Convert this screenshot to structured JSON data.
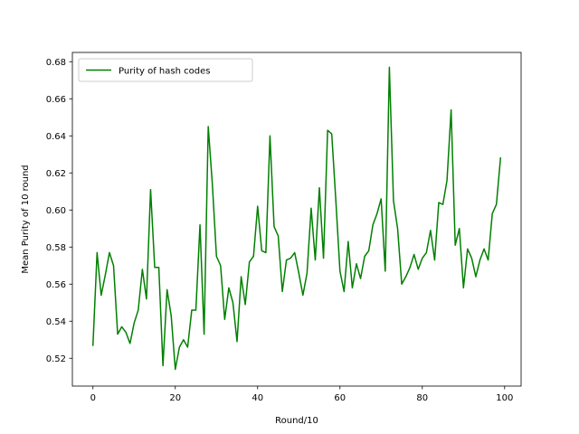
{
  "chart_data": {
    "type": "line",
    "title": "",
    "xlabel": "Round/10",
    "ylabel": "Mean Purity of 10 round",
    "xlim": [
      -5,
      104
    ],
    "ylim": [
      0.505,
      0.685
    ],
    "xticks": [
      0,
      20,
      40,
      60,
      80,
      100
    ],
    "yticks": [
      0.52,
      0.54,
      0.56,
      0.58,
      0.6,
      0.62,
      0.64,
      0.66,
      0.68
    ],
    "grid": false,
    "legend_position": "top-left",
    "series": [
      {
        "name": "Purity of hash codes",
        "color": "#008000",
        "x": [
          0,
          1,
          2,
          3,
          4,
          5,
          6,
          7,
          8,
          9,
          10,
          11,
          12,
          13,
          14,
          15,
          16,
          17,
          18,
          19,
          20,
          21,
          22,
          23,
          24,
          25,
          26,
          27,
          28,
          29,
          30,
          31,
          32,
          33,
          34,
          35,
          36,
          37,
          38,
          39,
          40,
          41,
          42,
          43,
          44,
          45,
          46,
          47,
          48,
          49,
          50,
          51,
          52,
          53,
          54,
          55,
          56,
          57,
          58,
          59,
          60,
          61,
          62,
          63,
          64,
          65,
          66,
          67,
          68,
          69,
          70,
          71,
          72,
          73,
          74,
          75,
          76,
          77,
          78,
          79,
          80,
          81,
          82,
          83,
          84,
          85,
          86,
          87,
          88,
          89,
          90,
          91,
          92,
          93,
          94,
          95,
          96,
          97,
          98,
          99
        ],
        "values": [
          0.527,
          0.577,
          0.554,
          0.565,
          0.577,
          0.57,
          0.533,
          0.537,
          0.534,
          0.528,
          0.539,
          0.546,
          0.568,
          0.552,
          0.611,
          0.569,
          0.569,
          0.516,
          0.557,
          0.543,
          0.514,
          0.526,
          0.53,
          0.526,
          0.546,
          0.546,
          0.592,
          0.533,
          0.645,
          0.614,
          0.575,
          0.57,
          0.541,
          0.558,
          0.55,
          0.529,
          0.564,
          0.549,
          0.572,
          0.575,
          0.602,
          0.578,
          0.577,
          0.64,
          0.591,
          0.586,
          0.556,
          0.573,
          0.574,
          0.577,
          0.566,
          0.554,
          0.566,
          0.601,
          0.573,
          0.612,
          0.574,
          0.643,
          0.641,
          0.605,
          0.567,
          0.556,
          0.583,
          0.558,
          0.571,
          0.563,
          0.575,
          0.578,
          0.592,
          0.598,
          0.606,
          0.567,
          0.677,
          0.605,
          0.59,
          0.56,
          0.564,
          0.569,
          0.576,
          0.568,
          0.574,
          0.577,
          0.589,
          0.573,
          0.604,
          0.603,
          0.616,
          0.654,
          0.581,
          0.59,
          0.558,
          0.579,
          0.574,
          0.564,
          0.573,
          0.579,
          0.573,
          0.598,
          0.603,
          0.628
        ]
      }
    ]
  }
}
